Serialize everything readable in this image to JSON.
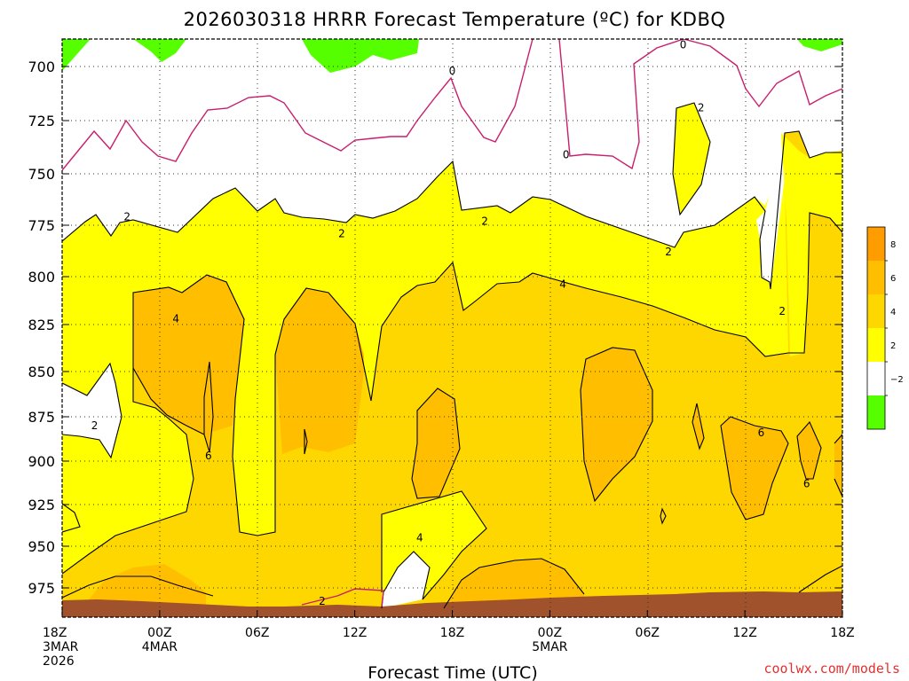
{
  "chart_data": {
    "type": "filled-contour",
    "title": "2026030318 HRRR Forecast Temperature (ºC) for KDBQ",
    "xlabel": "Forecast Time (UTC)",
    "ylabel": "",
    "credit": "coolwx.com/models",
    "x_range_hours": [
      0,
      48
    ],
    "y_range_hPa": [
      990,
      685
    ],
    "y_axis_inverted": true,
    "grid": "dotted",
    "y_ticks": [
      700,
      725,
      750,
      775,
      800,
      825,
      850,
      875,
      900,
      925,
      950,
      975
    ],
    "x_ticks": [
      {
        "hour": 0,
        "lines": [
          "18Z",
          "3MAR",
          "2026"
        ]
      },
      {
        "hour": 6,
        "lines": [
          "00Z",
          "4MAR"
        ]
      },
      {
        "hour": 12,
        "lines": [
          "06Z"
        ]
      },
      {
        "hour": 18,
        "lines": [
          "12Z"
        ]
      },
      {
        "hour": 24,
        "lines": [
          "18Z"
        ]
      },
      {
        "hour": 30,
        "lines": [
          "00Z",
          "5MAR"
        ]
      },
      {
        "hour": 36,
        "lines": [
          "06Z"
        ]
      },
      {
        "hour": 42,
        "lines": [
          "12Z"
        ]
      },
      {
        "hour": 48,
        "lines": [
          "18Z"
        ]
      }
    ],
    "colorbar": {
      "ticks": [
        "8",
        "6",
        "4",
        "2",
        "−2"
      ],
      "levels": [
        {
          "color": "#ff9d00"
        },
        {
          "color": "#ffbf00"
        },
        {
          "color": "#ffd700"
        },
        {
          "color": "#ffff00"
        },
        {
          "color": "#ffffff"
        },
        {
          "color": "#55ff00"
        }
      ]
    },
    "colors": {
      "lt0": "#55ff00",
      "r0_2": "#ffffff",
      "r2_4": "#ffff00",
      "r4_6": "#ffd700",
      "r6_8": "#ffbf00",
      "ground": "#a0522d",
      "zero_line": "#c81e6e"
    },
    "contour_labels": [
      {
        "text": "0",
        "hour": 24.0,
        "hPa": 702
      },
      {
        "text": "0",
        "hour": 31.0,
        "hPa": 741
      },
      {
        "text": "0",
        "hour": 38.2,
        "hPa": 690
      },
      {
        "text": "2",
        "hour": 39.3,
        "hPa": 719
      },
      {
        "text": "2",
        "hour": 4.0,
        "hPa": 771
      },
      {
        "text": "2",
        "hour": 17.2,
        "hPa": 779
      },
      {
        "text": "2",
        "hour": 26.0,
        "hPa": 773
      },
      {
        "text": "2",
        "hour": 37.3,
        "hPa": 788
      },
      {
        "text": "2",
        "hour": 44.3,
        "hPa": 818
      },
      {
        "text": "2",
        "hour": 2.0,
        "hPa": 880
      },
      {
        "text": "2",
        "hour": 16.0,
        "hPa": 983
      },
      {
        "text": "4",
        "hour": 7.0,
        "hPa": 822
      },
      {
        "text": "4",
        "hour": 30.8,
        "hPa": 804
      },
      {
        "text": "4",
        "hour": 22.0,
        "hPa": 945
      },
      {
        "text": "6",
        "hour": 9.0,
        "hPa": 897
      },
      {
        "text": "6",
        "hour": 43.0,
        "hPa": 884
      },
      {
        "text": "6",
        "hour": 45.8,
        "hPa": 913
      }
    ]
  }
}
